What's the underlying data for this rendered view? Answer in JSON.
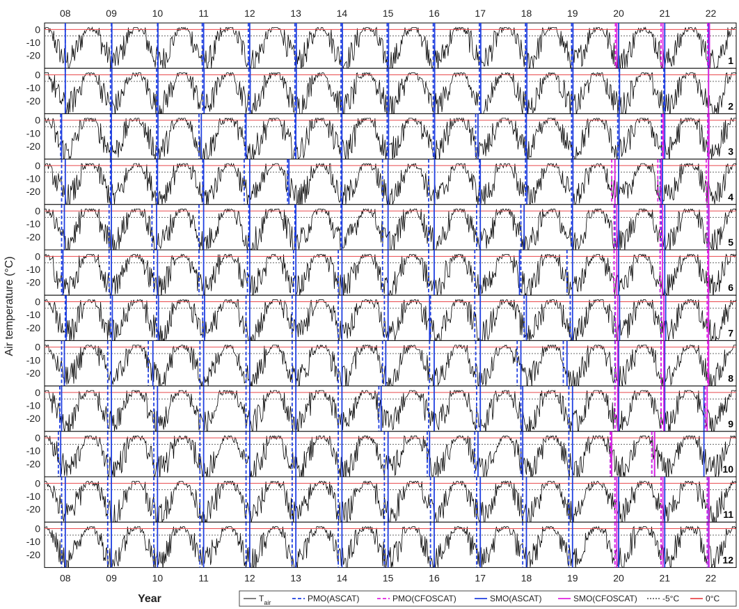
{
  "chart_data": {
    "type": "line",
    "ylabel": "Air temperature (°C)",
    "xlabel": "Year",
    "x_ticks": [
      "08",
      "09",
      "10",
      "11",
      "12",
      "13",
      "14",
      "15",
      "16",
      "17",
      "18",
      "19",
      "20",
      "21",
      "22"
    ],
    "x_range": [
      2007.55,
      2022.55
    ],
    "y_ticks": [
      0,
      -10,
      -20
    ],
    "ylim": [
      -30,
      5
    ],
    "reference_lines": [
      {
        "name": "-5°C",
        "value": -5,
        "color": "#666666",
        "style": "dotted"
      },
      {
        "name": "0°C",
        "value": 0,
        "color": "#e8484b",
        "style": "solid"
      }
    ],
    "legend": [
      {
        "key": "tair",
        "label": "T",
        "sub": "air",
        "color": "#000000",
        "style": "solid"
      },
      {
        "key": "pmo_ascat",
        "label": "PMO(ASCAT)",
        "color": "#1f3fe0",
        "style": "dashed"
      },
      {
        "key": "pmo_cfoscat",
        "label": "PMO(CFOSCAT)",
        "color": "#e020e0",
        "style": "dashed"
      },
      {
        "key": "smo_ascat",
        "label": "SMO(ASCAT)",
        "color": "#1f3fe0",
        "style": "solid"
      },
      {
        "key": "smo_cfoscat",
        "label": "SMO(CFOSCAT)",
        "color": "#e020e0",
        "style": "solid"
      },
      {
        "key": "minus5",
        "label": "-5°C",
        "color": "#666666",
        "style": "dotted"
      },
      {
        "key": "zero",
        "label": "0°C",
        "color": "#e8484b",
        "style": "solid"
      }
    ],
    "panels": [
      {
        "label": "1",
        "pmo_ascat": [
          2008.0,
          2009.0,
          2010.0,
          2010.97,
          2011.97,
          2012.98,
          2013.98,
          2014.98,
          2015.98,
          2016.98,
          2017.98,
          2018.98
        ],
        "smo_ascat": [
          2008.0,
          2009.01,
          2010.01,
          2011.0,
          2012.0,
          2013.01,
          2014.01,
          2015.01,
          2016.01,
          2017.01,
          2018.01,
          2019.01,
          2020.0,
          2021.0,
          2021.95
        ],
        "pmo_cfoscat": [
          2019.93,
          2020.92,
          2021.93
        ],
        "smo_cfoscat": [
          2019.96,
          2020.96,
          2021.97
        ]
      },
      {
        "label": "2",
        "pmo_ascat": [
          2008.0,
          2008.98,
          2009.98,
          2010.98,
          2011.98,
          2012.98,
          2013.98,
          2014.98,
          2015.98,
          2016.98,
          2017.98,
          2018.98,
          2020.01,
          2020.98
        ],
        "smo_ascat": [
          2008.0,
          2009.01,
          2010.01,
          2011.01,
          2012.01,
          2013.01,
          2014.01,
          2015.01,
          2016.01,
          2017.01,
          2018.01,
          2019.01,
          2020.02,
          2021.0,
          2021.95
        ],
        "pmo_cfoscat": [],
        "smo_cfoscat": [
          2021.95
        ]
      },
      {
        "label": "3",
        "pmo_ascat": [
          2007.9,
          2008.98,
          2009.98,
          2010.9,
          2011.9,
          2012.98,
          2013.98,
          2014.98,
          2015.98,
          2016.9,
          2017.98,
          2018.98,
          2019.98,
          2020.93
        ],
        "smo_ascat": [
          2007.92,
          2009.0,
          2010.01,
          2010.95,
          2011.92,
          2013.0,
          2014.0,
          2015.01,
          2016.01,
          2016.95,
          2018.0,
          2019.01,
          2020.01,
          2021.0,
          2021.95
        ],
        "pmo_cfoscat": [
          2020.95,
          2021.93
        ],
        "smo_cfoscat": [
          2020.97,
          2021.96
        ]
      },
      {
        "label": "4",
        "pmo_ascat": [
          2007.92,
          2008.98,
          2009.98,
          2010.98,
          2011.88,
          2012.82,
          2013.98,
          2014.88,
          2015.88,
          2016.98,
          2017.98,
          2018.98,
          2019.92,
          2020.9
        ],
        "smo_ascat": [
          2008.0,
          2009.0,
          2010.0,
          2011.0,
          2012.0,
          2012.85,
          2014.0,
          2015.0,
          2016.01,
          2017.0,
          2018.01,
          2019.01,
          2020.0,
          2020.95,
          2021.95
        ],
        "pmo_cfoscat": [
          2019.85,
          2020.85,
          2021.9
        ],
        "smo_cfoscat": [
          2019.92,
          2020.92,
          2021.95
        ]
      },
      {
        "label": "5",
        "pmo_ascat": [
          2007.92,
          2008.95,
          2009.88,
          2010.9,
          2011.98,
          2012.98,
          2013.98,
          2014.88,
          2015.88,
          2016.92,
          2017.88,
          2018.98,
          2019.92,
          2020.92
        ],
        "smo_ascat": [
          2007.98,
          2009.0,
          2009.98,
          2011.0,
          2012.0,
          2013.0,
          2014.0,
          2015.0,
          2016.0,
          2017.0,
          2017.95,
          2019.0,
          2020.0,
          2021.0,
          2021.95
        ],
        "pmo_cfoscat": [
          2019.9,
          2020.9,
          2021.92
        ],
        "smo_cfoscat": [
          2019.96,
          2020.95,
          2021.96
        ]
      },
      {
        "label": "6",
        "pmo_ascat": [
          2007.92,
          2008.95,
          2009.92,
          2010.9,
          2011.95,
          2012.95,
          2013.92,
          2014.88,
          2015.88,
          2016.88,
          2017.88,
          2018.88,
          2019.9,
          2020.9
        ],
        "smo_ascat": [
          2007.95,
          2009.0,
          2010.0,
          2011.0,
          2012.0,
          2013.0,
          2014.0,
          2015.0,
          2016.0,
          2017.0,
          2017.85,
          2019.0,
          2020.0,
          2021.0,
          2021.95
        ],
        "pmo_cfoscat": [
          2019.9,
          2020.9,
          2021.93
        ],
        "smo_cfoscat": [
          2019.96,
          2020.95,
          2021.95
        ]
      },
      {
        "label": "7",
        "pmo_ascat": [
          2008.0,
          2008.98,
          2009.98,
          2010.98,
          2011.92,
          2012.92,
          2013.92,
          2014.92,
          2015.92,
          2016.88,
          2017.95,
          2018.95,
          2019.92,
          2020.92
        ],
        "smo_ascat": [
          2008.02,
          2009.02,
          2010.02,
          2011.02,
          2012.0,
          2013.0,
          2014.0,
          2015.0,
          2015.9,
          2017.0,
          2018.0,
          2019.0,
          2020.02,
          2021.02,
          2021.95
        ],
        "pmo_cfoscat": [
          2019.93,
          2020.93,
          2021.92
        ],
        "smo_cfoscat": [
          2019.98,
          2020.98,
          2021.95
        ]
      },
      {
        "label": "8",
        "pmo_ascat": [
          2007.92,
          2008.92,
          2009.8,
          2010.92,
          2011.92,
          2012.92,
          2013.92,
          2014.88,
          2015.9,
          2016.9,
          2017.8,
          2018.8,
          2019.92,
          2020.92
        ],
        "smo_ascat": [
          2007.98,
          2009.0,
          2009.9,
          2011.0,
          2012.0,
          2013.0,
          2014.0,
          2014.95,
          2016.0,
          2017.0,
          2017.88,
          2018.88,
          2020.0,
          2021.0,
          2021.95
        ],
        "pmo_cfoscat": [
          2019.93,
          2020.92,
          2021.93
        ],
        "smo_cfoscat": [
          2019.98,
          2020.98,
          2021.95
        ]
      },
      {
        "label": "9",
        "pmo_ascat": [
          2007.88,
          2008.92,
          2009.92,
          2010.92,
          2011.92,
          2012.92,
          2013.92,
          2014.8,
          2015.88,
          2016.92,
          2017.88,
          2018.92,
          2019.92,
          2020.92
        ],
        "smo_ascat": [
          2007.92,
          2009.0,
          2010.0,
          2011.0,
          2012.0,
          2013.0,
          2014.0,
          2014.85,
          2016.0,
          2017.0,
          2017.92,
          2019.0,
          2020.0,
          2021.0,
          2021.85
        ],
        "pmo_cfoscat": [
          2019.92,
          2020.92,
          2021.88
        ],
        "smo_cfoscat": [
          2019.98,
          2020.98,
          2021.92
        ]
      },
      {
        "label": "10",
        "pmo_ascat": [
          2007.85,
          2008.92,
          2009.92,
          2010.92,
          2011.92,
          2012.92,
          2013.92,
          2014.92,
          2015.85,
          2016.88,
          2017.88,
          2018.92,
          2019.82,
          2020.72
        ],
        "smo_ascat": [
          2007.9,
          2009.0,
          2010.0,
          2011.0,
          2012.0,
          2013.0,
          2014.0,
          2015.0,
          2015.9,
          2016.95,
          2017.92,
          2019.0,
          2019.85,
          2020.78,
          2021.85
        ],
        "pmo_cfoscat": [
          2019.82,
          2020.72
        ],
        "smo_cfoscat": [
          2019.85,
          2020.78
        ]
      },
      {
        "label": "11",
        "pmo_ascat": [
          2007.92,
          2008.92,
          2009.92,
          2010.92,
          2011.92,
          2012.92,
          2013.92,
          2014.92,
          2015.92,
          2016.92,
          2017.92,
          2018.92,
          2019.92,
          2020.92
        ],
        "smo_ascat": [
          2008.0,
          2009.0,
          2010.0,
          2011.0,
          2012.0,
          2013.0,
          2014.0,
          2015.0,
          2016.0,
          2017.0,
          2018.0,
          2019.0,
          2020.0,
          2021.0,
          2021.95
        ],
        "pmo_cfoscat": [
          2019.92,
          2020.92,
          2021.92
        ],
        "smo_cfoscat": [
          2019.96,
          2020.96,
          2021.96
        ]
      },
      {
        "label": "12",
        "pmo_ascat": [
          2007.92,
          2008.92,
          2009.92,
          2010.92,
          2011.92,
          2012.92,
          2013.92,
          2014.92,
          2015.92,
          2016.92,
          2017.92,
          2018.92,
          2019.92,
          2020.92
        ],
        "smo_ascat": [
          2008.0,
          2009.0,
          2010.0,
          2011.0,
          2012.0,
          2013.0,
          2014.0,
          2015.0,
          2016.0,
          2017.0,
          2018.0,
          2019.0,
          2020.0,
          2021.0,
          2021.95
        ],
        "pmo_cfoscat": [
          2019.92,
          2020.92,
          2021.92
        ],
        "smo_cfoscat": [
          2019.96,
          2020.96,
          2021.96
        ]
      }
    ]
  }
}
